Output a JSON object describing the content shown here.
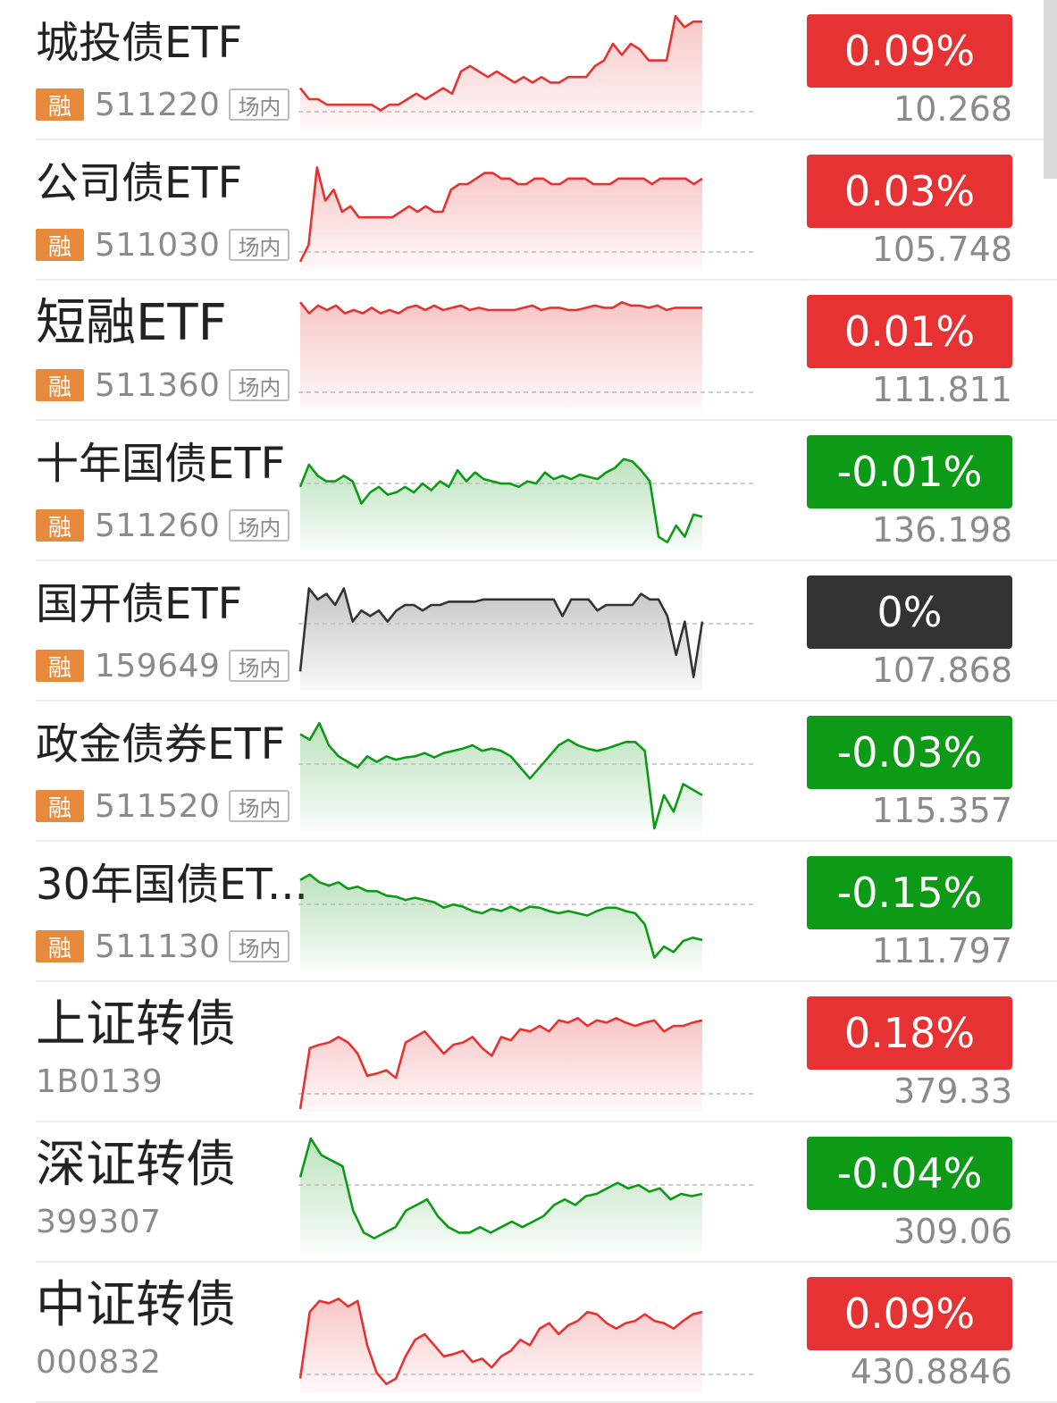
{
  "colors": {
    "up": "#e63232",
    "down": "#0d9a16",
    "flat": "#333333",
    "rong_badge": "#e88a3c"
  },
  "rows": [
    {
      "name": "城投债ETF",
      "rong": "融",
      "code": "511220",
      "market": "场内",
      "change": "0.09%",
      "price": "10.268",
      "trend": "up",
      "spark": [
        35,
        25,
        25,
        20,
        20,
        20,
        20,
        20,
        20,
        15,
        20,
        20,
        25,
        30,
        25,
        30,
        35,
        30,
        50,
        55,
        50,
        45,
        50,
        45,
        40,
        45,
        40,
        45,
        40,
        40,
        45,
        45,
        45,
        55,
        60,
        75,
        65,
        75,
        70,
        60,
        60,
        60,
        100,
        90,
        95,
        95
      ]
    },
    {
      "name": "公司债ETF",
      "rong": "融",
      "code": "511030",
      "market": "场内",
      "change": "0.03%",
      "price": "105.748",
      "trend": "up",
      "spark": [
        5,
        20,
        90,
        60,
        70,
        50,
        55,
        45,
        45,
        45,
        45,
        45,
        50,
        55,
        50,
        55,
        50,
        50,
        70,
        75,
        75,
        80,
        85,
        85,
        80,
        80,
        75,
        75,
        80,
        80,
        75,
        75,
        80,
        80,
        80,
        75,
        75,
        75,
        80,
        80,
        80,
        80,
        75,
        80,
        80,
        80,
        80,
        75,
        80
      ]
    },
    {
      "name": "短融ETF",
      "rong": "融",
      "code": "511360",
      "market": "场内",
      "change": "0.01%",
      "price": "111.811",
      "trend": "up",
      "spark": [
        95,
        85,
        92,
        88,
        92,
        85,
        88,
        85,
        90,
        85,
        88,
        85,
        90,
        92,
        88,
        92,
        88,
        90,
        92,
        88,
        90,
        88,
        88,
        88,
        88,
        90,
        92,
        88,
        90,
        90,
        88,
        88,
        90,
        92,
        90,
        90,
        95,
        92,
        92,
        90,
        92,
        88,
        90,
        90,
        90,
        90
      ]
    },
    {
      "name": "十年国债ETF",
      "rong": "融",
      "code": "511260",
      "market": "场内",
      "change": "-0.01%",
      "price": "136.198",
      "trend": "down",
      "spark": [
        55,
        75,
        65,
        60,
        60,
        65,
        60,
        40,
        50,
        55,
        48,
        50,
        55,
        50,
        58,
        52,
        60,
        55,
        70,
        60,
        68,
        62,
        60,
        58,
        58,
        55,
        60,
        58,
        68,
        62,
        65,
        62,
        66,
        64,
        62,
        68,
        72,
        80,
        78,
        70,
        60,
        10,
        5,
        20,
        10,
        30,
        28
      ]
    },
    {
      "name": "国开债ETF",
      "rong": "融",
      "code": "159649",
      "market": "场内",
      "change": "0%",
      "price": "107.868",
      "trend": "flat",
      "spark": [
        15,
        90,
        80,
        85,
        75,
        90,
        60,
        70,
        65,
        70,
        60,
        70,
        75,
        75,
        70,
        75,
        75,
        78,
        78,
        78,
        78,
        80,
        80,
        80,
        80,
        80,
        80,
        80,
        80,
        80,
        65,
        80,
        80,
        80,
        70,
        75,
        75,
        75,
        75,
        85,
        80,
        80,
        65,
        30,
        60,
        10,
        60
      ]
    },
    {
      "name": "政金债券ETF",
      "rong": "融",
      "code": "511520",
      "market": "场内",
      "change": "-0.03%",
      "price": "115.357",
      "trend": "down",
      "spark": [
        85,
        80,
        95,
        75,
        65,
        60,
        55,
        65,
        60,
        65,
        62,
        64,
        65,
        68,
        64,
        68,
        70,
        72,
        75,
        70,
        72,
        70,
        65,
        55,
        45,
        55,
        65,
        75,
        80,
        75,
        72,
        70,
        72,
        75,
        78,
        78,
        70,
        0,
        30,
        15,
        40,
        35,
        30
      ]
    },
    {
      "name": "30年国债ET...",
      "rong": "融",
      "code": "511130",
      "market": "场内",
      "change": "-0.15%",
      "price": "111.797",
      "trend": "down",
      "spark": [
        80,
        85,
        78,
        75,
        78,
        72,
        74,
        70,
        70,
        66,
        65,
        62,
        64,
        62,
        60,
        55,
        58,
        56,
        52,
        50,
        54,
        52,
        56,
        52,
        56,
        55,
        52,
        50,
        52,
        50,
        48,
        52,
        55,
        55,
        52,
        50,
        40,
        10,
        20,
        15,
        25,
        28,
        26
      ]
    },
    {
      "name": "上证转债",
      "rong": "",
      "code": "1B0139",
      "market": "",
      "change": "0.18%",
      "price": "379.33",
      "trend": "up",
      "spark": [
        0,
        55,
        58,
        60,
        65,
        60,
        50,
        30,
        32,
        35,
        28,
        60,
        65,
        70,
        60,
        50,
        58,
        60,
        65,
        55,
        48,
        65,
        62,
        72,
        70,
        75,
        70,
        80,
        78,
        82,
        75,
        80,
        78,
        82,
        78,
        75,
        78,
        80,
        70,
        75,
        75,
        78,
        80
      ]
    },
    {
      "name": "深证转债",
      "rong": "",
      "code": "399307",
      "market": "",
      "change": "-0.04%",
      "price": "309.06",
      "trend": "down",
      "spark": [
        65,
        100,
        85,
        80,
        75,
        35,
        15,
        10,
        15,
        20,
        35,
        40,
        45,
        30,
        20,
        15,
        15,
        20,
        15,
        20,
        25,
        20,
        25,
        30,
        40,
        45,
        40,
        48,
        50,
        55,
        60,
        55,
        58,
        52,
        55,
        45,
        50,
        48,
        50
      ]
    },
    {
      "name": "中证转债",
      "rong": "",
      "code": "000832",
      "market": "",
      "change": "0.09%",
      "price": "430.8846",
      "trend": "up",
      "spark": [
        10,
        70,
        80,
        78,
        82,
        75,
        80,
        40,
        15,
        5,
        10,
        30,
        45,
        50,
        40,
        30,
        32,
        35,
        25,
        28,
        20,
        30,
        35,
        45,
        40,
        55,
        60,
        50,
        58,
        62,
        70,
        68,
        60,
        55,
        60,
        62,
        68,
        62,
        60,
        55,
        62,
        68,
        70
      ]
    }
  ]
}
